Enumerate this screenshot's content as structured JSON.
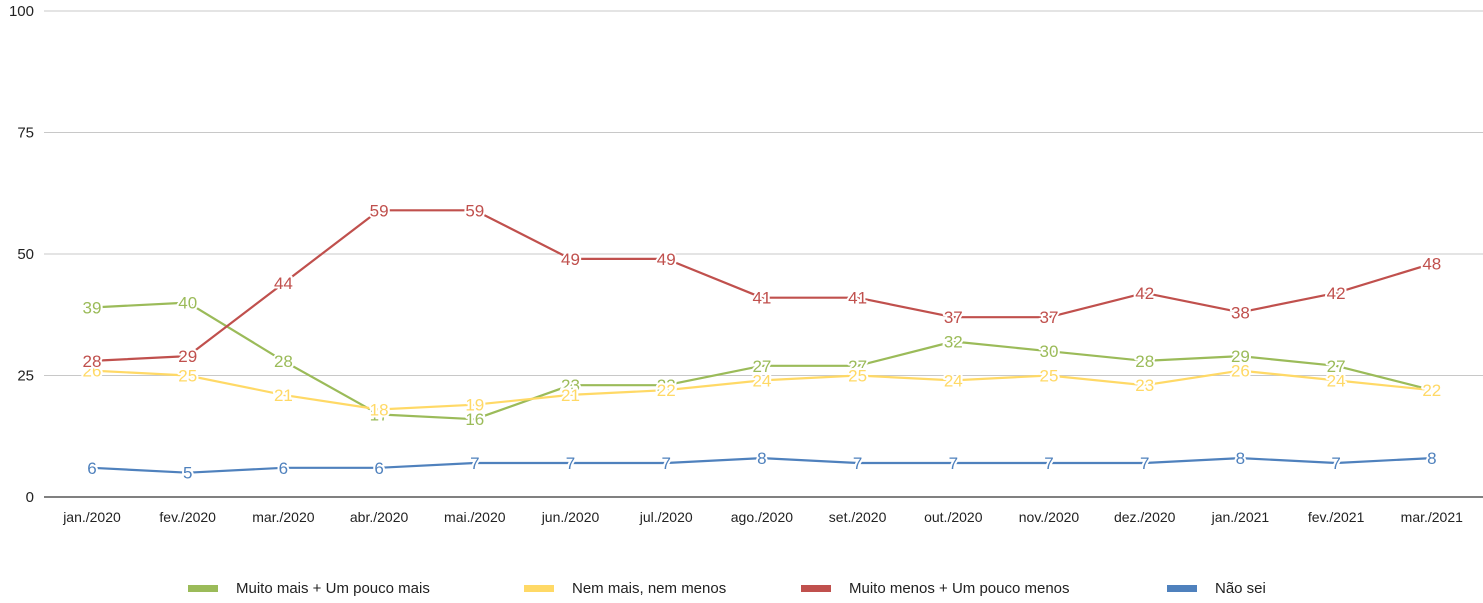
{
  "chart_data": {
    "type": "line",
    "categories": [
      "jan./2020",
      "fev./2020",
      "mar./2020",
      "abr./2020",
      "mai./2020",
      "jun./2020",
      "jul./2020",
      "ago./2020",
      "set./2020",
      "out./2020",
      "nov./2020",
      "dez./2020",
      "jan./2021",
      "fev./2021",
      "mar./2021"
    ],
    "series": [
      {
        "name": "Muito mais + Um pouco mais",
        "color": "#9bbb59",
        "values": [
          39,
          40,
          28,
          17,
          16,
          23,
          23,
          27,
          27,
          32,
          30,
          28,
          29,
          27,
          22
        ]
      },
      {
        "name": "Nem mais, nem menos",
        "color": "#ffd966",
        "values": [
          26,
          25,
          21,
          18,
          19,
          21,
          22,
          24,
          25,
          24,
          25,
          23,
          26,
          24,
          22
        ]
      },
      {
        "name": "Muito menos + Um pouco menos",
        "color": "#c0504d",
        "values": [
          28,
          29,
          44,
          59,
          59,
          49,
          49,
          41,
          41,
          37,
          37,
          42,
          38,
          42,
          48
        ]
      },
      {
        "name": "Não sei",
        "color": "#4f81bd",
        "values": [
          6,
          5,
          6,
          6,
          7,
          7,
          7,
          8,
          7,
          7,
          7,
          7,
          8,
          7,
          8
        ]
      }
    ],
    "yticks": [
      0,
      25,
      50,
      75,
      100
    ],
    "ylim": [
      0,
      100
    ],
    "title": "",
    "xlabel": "",
    "ylabel": "",
    "grid": true,
    "legend": "bottom"
  }
}
